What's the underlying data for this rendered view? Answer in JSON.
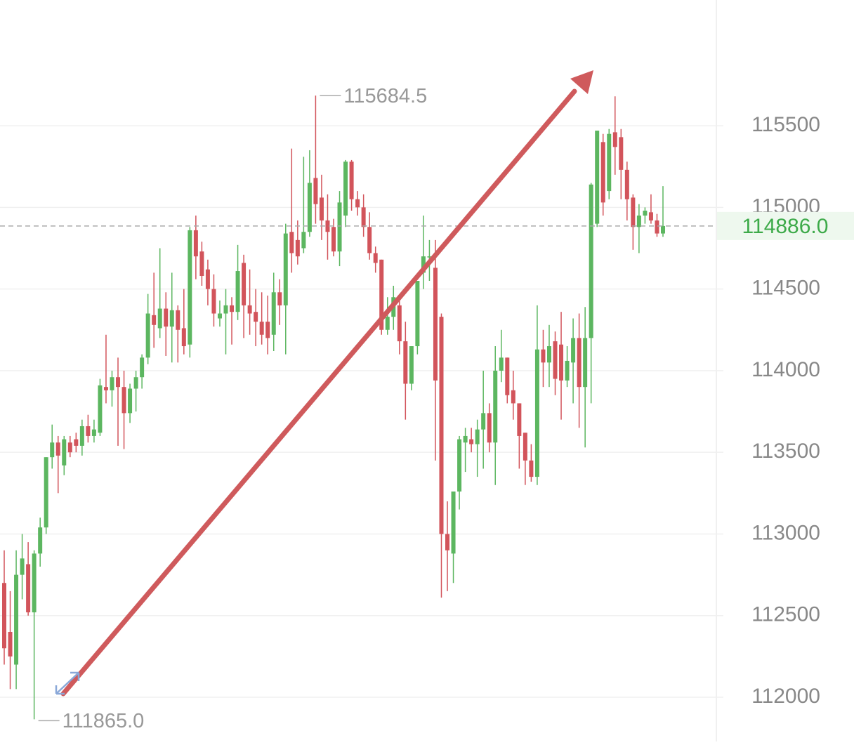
{
  "chart_data": {
    "type": "candlestick",
    "up_color": "#5cb660",
    "down_color": "#d2545b",
    "grid": true,
    "ylim": [
      111755,
      116270
    ],
    "yticks": [
      112000,
      112500,
      113000,
      113500,
      114000,
      114500,
      115000,
      115500
    ],
    "last_price": {
      "value": 114886,
      "label": "114886.0"
    },
    "annotations": [
      {
        "kind": "high",
        "value": 115684.5,
        "label": "115684.5"
      },
      {
        "kind": "low",
        "value": 111865,
        "label": "111865.0"
      }
    ],
    "open": [
      112700,
      112400,
      112200,
      112750,
      112815,
      112520,
      112880,
      113040,
      113470,
      113560,
      113420,
      113560,
      113580,
      113540,
      113660,
      113600,
      113620,
      113900,
      113880,
      113960,
      113900,
      113740,
      113890,
      113960,
      114080,
      114340,
      114260,
      114380,
      114270,
      114370,
      114260,
      114160,
      114860,
      114730,
      114620,
      114500,
      114320,
      114350,
      114400,
      114360,
      114660,
      114400,
      114360,
      114300,
      114300,
      114220,
      114480,
      114400,
      114850,
      114800,
      114750,
      114850,
      115180,
      115060,
      114920,
      114880,
      114730,
      114950,
      115280,
      115050,
      115000,
      114880,
      114720,
      114680,
      114250,
      114330,
      114400,
      114180,
      113920,
      114150,
      114600,
      114700,
      114630,
      114330,
      113000,
      112880,
      113260,
      113560,
      113580,
      113550,
      113640,
      113740,
      113560,
      114000,
      114080,
      113880,
      113800,
      113620,
      113450,
      113350,
      114130,
      114050,
      114180,
      114160,
      113940,
      114050,
      114200,
      113900,
      114200,
      114900,
      115400,
      115100,
      115460,
      115430,
      115230,
      115060,
      114880,
      114950,
      114970,
      114920,
      114840
    ],
    "high": [
      112900,
      112650,
      112900,
      113000,
      112950,
      112900,
      113100,
      113470,
      113670,
      113600,
      113600,
      113600,
      113620,
      113700,
      113730,
      113700,
      113950,
      114220,
      114000,
      114080,
      114000,
      113920,
      114000,
      114100,
      114470,
      114600,
      114750,
      114480,
      114600,
      114400,
      114500,
      114880,
      114950,
      114790,
      114680,
      114590,
      114430,
      114500,
      114450,
      114770,
      114710,
      114620,
      114500,
      114480,
      114460,
      114600,
      114560,
      114900,
      115360,
      114920,
      115310,
      115350,
      115684.5,
      115200,
      115080,
      114930,
      115100,
      115290,
      115290,
      115100,
      115080,
      114970,
      114760,
      114680,
      114450,
      114520,
      114450,
      114300,
      114150,
      114550,
      114950,
      114800,
      114800,
      114350,
      113200,
      113260,
      113600,
      113650,
      113650,
      113700,
      114000,
      113800,
      114150,
      114250,
      114080,
      114000,
      113800,
      113620,
      113550,
      114400,
      114250,
      114280,
      114240,
      114360,
      114150,
      114320,
      114350,
      114390,
      115150,
      115470,
      115450,
      115480,
      115680,
      115480,
      115280,
      115080,
      115020,
      115000,
      115080,
      114960,
      115130
    ],
    "low": [
      112200,
      112050,
      112050,
      112600,
      112500,
      111865,
      112800,
      113000,
      113400,
      113250,
      113360,
      113470,
      113500,
      113480,
      113560,
      113560,
      113600,
      113800,
      113780,
      113540,
      113520,
      113680,
      113750,
      113890,
      114040,
      114140,
      114200,
      114090,
      114050,
      114050,
      114100,
      114080,
      114560,
      114520,
      114400,
      114270,
      114270,
      114100,
      114160,
      114310,
      114200,
      114220,
      114150,
      114160,
      114100,
      114120,
      114280,
      114100,
      114600,
      114650,
      114720,
      114820,
      114900,
      114800,
      114680,
      114700,
      114640,
      114880,
      114980,
      114950,
      114820,
      114680,
      114600,
      114220,
      114220,
      114250,
      114100,
      113700,
      113880,
      114100,
      114500,
      114550,
      113450,
      112610,
      112650,
      112700,
      113150,
      113380,
      113500,
      113350,
      113400,
      113500,
      113300,
      113930,
      113800,
      113700,
      113400,
      113300,
      113320,
      113300,
      113900,
      113900,
      113850,
      113700,
      113900,
      113800,
      113650,
      113530,
      113800,
      114880,
      114950,
      115050,
      115200,
      115050,
      114920,
      114740,
      114720,
      114900,
      114900,
      114820,
      114820
    ],
    "close": [
      112300,
      112250,
      112750,
      112850,
      112520,
      112880,
      113040,
      113470,
      113560,
      113480,
      113580,
      113500,
      113540,
      113660,
      113600,
      113640,
      113910,
      113880,
      113960,
      113900,
      113740,
      113890,
      113960,
      114080,
      114350,
      114280,
      114380,
      114270,
      114370,
      114250,
      114150,
      114860,
      114700,
      114580,
      114500,
      114350,
      114350,
      114400,
      114360,
      114610,
      114400,
      114350,
      114300,
      114220,
      114200,
      114480,
      114400,
      114840,
      114720,
      114700,
      114850,
      115150,
      115020,
      114920,
      114850,
      114730,
      115030,
      115280,
      115050,
      115000,
      114880,
      114720,
      114660,
      114250,
      114330,
      114450,
      114180,
      113920,
      114150,
      114550,
      114700,
      114700,
      113940,
      113000,
      112900,
      113260,
      113580,
      113600,
      113550,
      113640,
      113740,
      113560,
      114000,
      114080,
      113850,
      113800,
      113600,
      113450,
      113350,
      114130,
      114050,
      114150,
      113950,
      113940,
      114060,
      114200,
      113900,
      114200,
      115140,
      115470,
      115030,
      115450,
      115370,
      115230,
      115050,
      114880,
      114950,
      114980,
      114920,
      114840,
      114886
    ]
  }
}
